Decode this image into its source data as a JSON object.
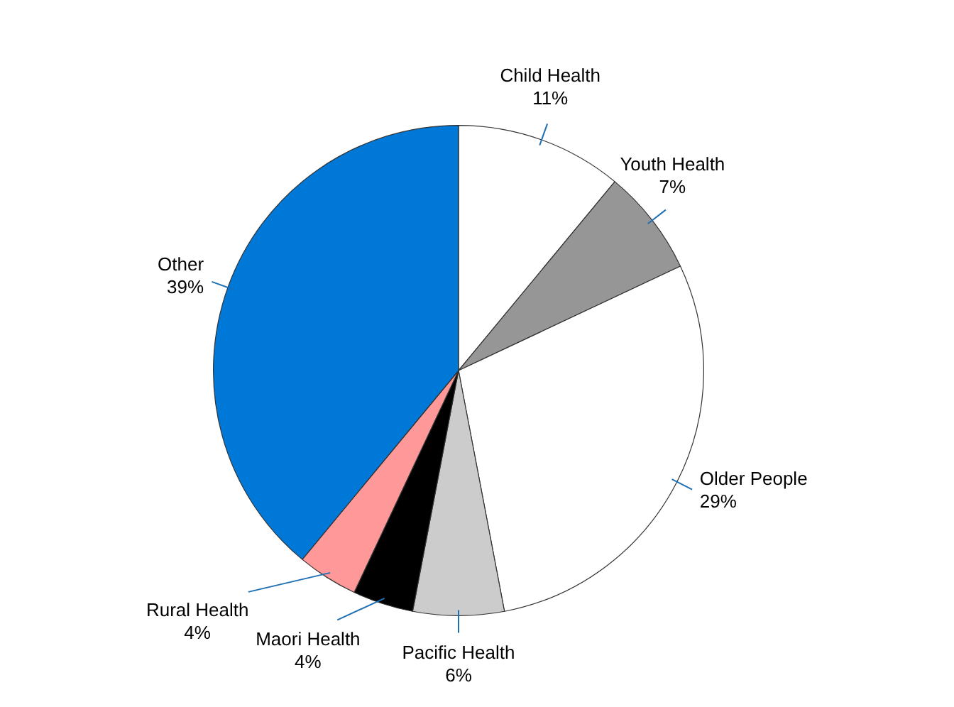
{
  "chart_data": {
    "type": "pie",
    "categories": [
      "Child Health",
      "Youth Health",
      "Older People",
      "Pacific Health",
      "Maori Health",
      "Rural Health",
      "Other"
    ],
    "values": [
      11,
      7,
      29,
      6,
      4,
      4,
      39
    ],
    "colors": [
      "#ffffff",
      "#969696",
      "#ffffff",
      "#cccccc",
      "#000000",
      "#ff9999",
      "#0078d7"
    ],
    "value_labels": [
      "11%",
      "7%",
      "29%",
      "6%",
      "4%",
      "4%",
      "39%"
    ]
  }
}
